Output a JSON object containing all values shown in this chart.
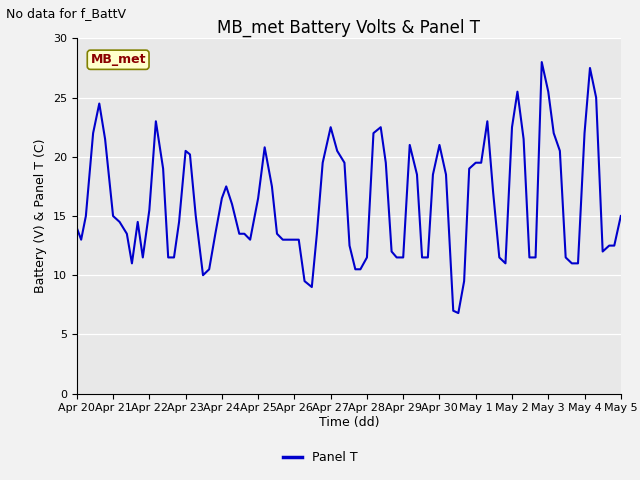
{
  "title": "MB_met Battery Volts & Panel T",
  "no_data_text": "No data for f_BattV",
  "ylabel": "Battery (V) & Panel T (C)",
  "xlabel": "Time (dd)",
  "legend_label": "Panel T",
  "mb_met_label": "MB_met",
  "ylim": [
    0,
    30
  ],
  "line_color": "#0000CC",
  "line_width": 1.5,
  "plot_bg_color": "#E8E8E8",
  "fig_bg_color": "#F2F2F2",
  "title_fontsize": 12,
  "axis_fontsize": 9,
  "tick_fontsize": 8,
  "xtick_labels": [
    "Apr 20",
    "Apr 21",
    "Apr 22",
    "Apr 23",
    "Apr 24",
    "Apr 25",
    "Apr 26",
    "Apr 27",
    "Apr 28",
    "Apr 29",
    "Apr 30",
    "May 1",
    "May 2",
    "May 3",
    "May 4",
    "May 5"
  ],
  "x_values": [
    0,
    0.12,
    0.25,
    0.45,
    0.62,
    0.78,
    1.0,
    1.18,
    1.38,
    1.52,
    1.68,
    1.82,
    2.0,
    2.18,
    2.38,
    2.52,
    2.68,
    2.82,
    3.0,
    3.12,
    3.28,
    3.48,
    3.65,
    3.82,
    4.0,
    4.12,
    4.28,
    4.48,
    4.62,
    4.78,
    5.0,
    5.18,
    5.38,
    5.52,
    5.68,
    5.82,
    6.0,
    6.12,
    6.28,
    6.48,
    6.62,
    6.78,
    7.0,
    7.18,
    7.38,
    7.52,
    7.68,
    7.82,
    8.0,
    8.18,
    8.38,
    8.52,
    8.68,
    8.82,
    9.0,
    9.18,
    9.38,
    9.52,
    9.68,
    9.82,
    10.0,
    10.18,
    10.38,
    10.52,
    10.68,
    10.82,
    11.0,
    11.15,
    11.32,
    11.48,
    11.65,
    11.82,
    12.0,
    12.15,
    12.32,
    12.48,
    12.65,
    12.82,
    13.0,
    13.15,
    13.32,
    13.48,
    13.65,
    13.82,
    14.0,
    14.15,
    14.32,
    14.5,
    14.68,
    14.82,
    15.0
  ],
  "y_values": [
    14.0,
    13.0,
    15.0,
    22.0,
    24.5,
    21.5,
    15.0,
    14.5,
    13.5,
    11.0,
    14.5,
    11.5,
    15.5,
    23.0,
    19.0,
    11.5,
    11.5,
    14.5,
    20.5,
    20.2,
    15.0,
    10.0,
    10.5,
    13.5,
    16.5,
    17.5,
    16.0,
    13.5,
    13.5,
    13.0,
    16.5,
    20.8,
    17.5,
    13.5,
    13.0,
    13.0,
    13.0,
    13.0,
    9.5,
    9.0,
    13.5,
    19.5,
    22.5,
    20.5,
    19.5,
    12.5,
    10.5,
    10.5,
    11.5,
    22.0,
    22.5,
    19.5,
    12.0,
    11.5,
    11.5,
    21.0,
    18.5,
    11.5,
    11.5,
    18.5,
    21.0,
    18.5,
    7.0,
    6.8,
    9.5,
    19.0,
    19.5,
    19.5,
    23.0,
    17.0,
    11.5,
    11.0,
    22.5,
    25.5,
    21.5,
    11.5,
    11.5,
    28.0,
    25.5,
    22.0,
    20.5,
    11.5,
    11.0,
    11.0,
    22.0,
    27.5,
    25.0,
    12.0,
    12.5,
    12.5,
    15.0
  ]
}
